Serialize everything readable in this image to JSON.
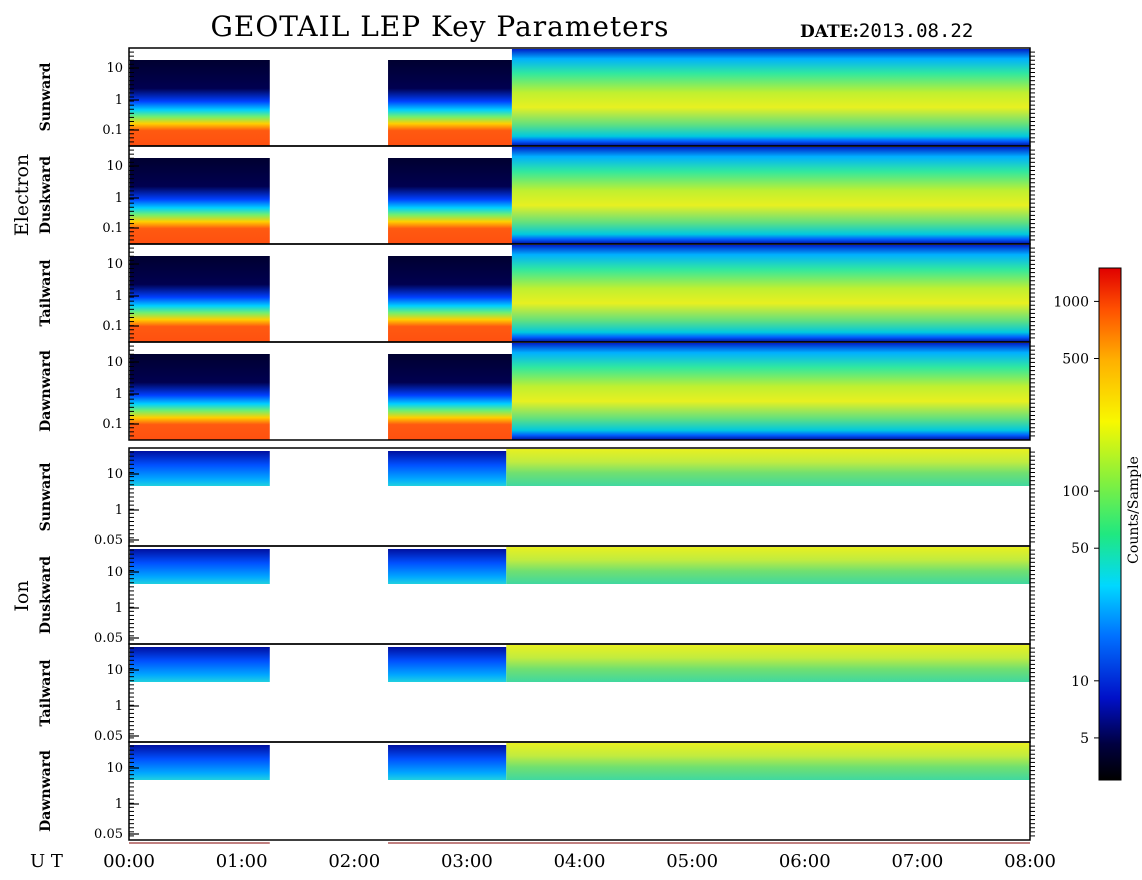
{
  "title": "GEOTAIL LEP Key Parameters",
  "date_label": "DATE:",
  "date_value": "2013.08.22",
  "groups": [
    "Electron",
    "Ion"
  ],
  "colorbar_label": "Counts/Sample",
  "time_axis_label": "U T",
  "colors": {
    "frame": "#000000",
    "background": "#ffffff",
    "gap_line": "#c08080"
  },
  "chart_data": {
    "type": "heatmap",
    "title": "GEOTAIL LEP Key Parameters",
    "date": "2013.08.22",
    "x_axis": {
      "label": "U T",
      "range": [
        "00:00",
        "08:00"
      ],
      "ticks": [
        "00:00",
        "01:00",
        "02:00",
        "03:00",
        "04:00",
        "05:00",
        "06:00",
        "07:00",
        "08:00"
      ]
    },
    "colorbar": {
      "label": "Counts/Sample",
      "scale": "log",
      "range": [
        3,
        1500
      ],
      "ticks": [
        "5",
        "10",
        "50",
        "100",
        "500",
        "1000"
      ]
    },
    "data_gaps_hours": [
      [
        1.25,
        2.3
      ]
    ],
    "panels": [
      {
        "group": "Electron",
        "direction": "Sunward",
        "y_scale": "log",
        "y_ticks": [
          "10",
          "1",
          "0.1"
        ]
      },
      {
        "group": "Electron",
        "direction": "Duskward",
        "y_scale": "log",
        "y_ticks": [
          "10",
          "1",
          "0.1"
        ]
      },
      {
        "group": "Electron",
        "direction": "Tailward",
        "y_scale": "log",
        "y_ticks": [
          "10",
          "1",
          "0.1"
        ]
      },
      {
        "group": "Electron",
        "direction": "Dawnward",
        "y_scale": "log",
        "y_ticks": [
          "10",
          "1",
          "0.1"
        ]
      },
      {
        "group": "Ion",
        "direction": "Sunward",
        "y_scale": "log",
        "y_ticks": [
          "10",
          "1",
          "0.05"
        ]
      },
      {
        "group": "Ion",
        "direction": "Duskward",
        "y_scale": "log",
        "y_ticks": [
          "10",
          "1",
          "0.05"
        ]
      },
      {
        "group": "Ion",
        "direction": "Tailward",
        "y_scale": "log",
        "y_ticks": [
          "10",
          "1",
          "0.05"
        ]
      },
      {
        "group": "Ion",
        "direction": "Dawnward",
        "y_scale": "log",
        "y_ticks": [
          "10",
          "1",
          "0.05"
        ]
      }
    ]
  }
}
